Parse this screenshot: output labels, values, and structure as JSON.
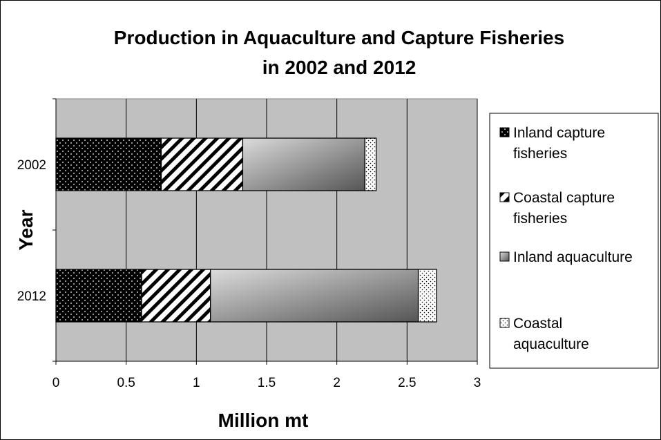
{
  "chart_data": {
    "type": "bar",
    "orientation": "horizontal",
    "stacked": true,
    "title_lines": [
      "Production in Aquaculture and Capture Fisheries",
      "in 2002 and 2012"
    ],
    "xlabel": "Million mt",
    "ylabel": "Year",
    "xlim": [
      0,
      3
    ],
    "xticks": [
      0,
      0.5,
      1,
      1.5,
      2,
      2.5,
      3
    ],
    "tick_labels": [
      "0",
      "0.5",
      "1",
      "1.5",
      "2",
      "2.5",
      "3"
    ],
    "categories": [
      "2002",
      "2012"
    ],
    "grid": true,
    "legend_position": "right",
    "series": [
      {
        "name": "Inland capture fisheries",
        "legend_lines": [
          "Inland capture",
          "fisheries"
        ],
        "values": [
          0.75,
          0.61
        ],
        "pattern": "dots-black"
      },
      {
        "name": "Coastal capture fisheries",
        "legend_lines": [
          "Coastal capture",
          "fisheries"
        ],
        "values": [
          0.58,
          0.49
        ],
        "pattern": "diagonal-stripes"
      },
      {
        "name": "Inland aquaculture",
        "legend_lines": [
          "Inland aquaculture"
        ],
        "values": [
          0.87,
          1.48
        ],
        "pattern": "gray-gradient"
      },
      {
        "name": "Coastal aquaculture",
        "legend_lines": [
          "Coastal",
          "aquaculture"
        ],
        "values": [
          0.08,
          0.13
        ],
        "pattern": "dots-white"
      }
    ],
    "colors": {
      "plot_background": "#c0c0c0",
      "grid": "#000000",
      "bar_outline": "#000000"
    }
  }
}
